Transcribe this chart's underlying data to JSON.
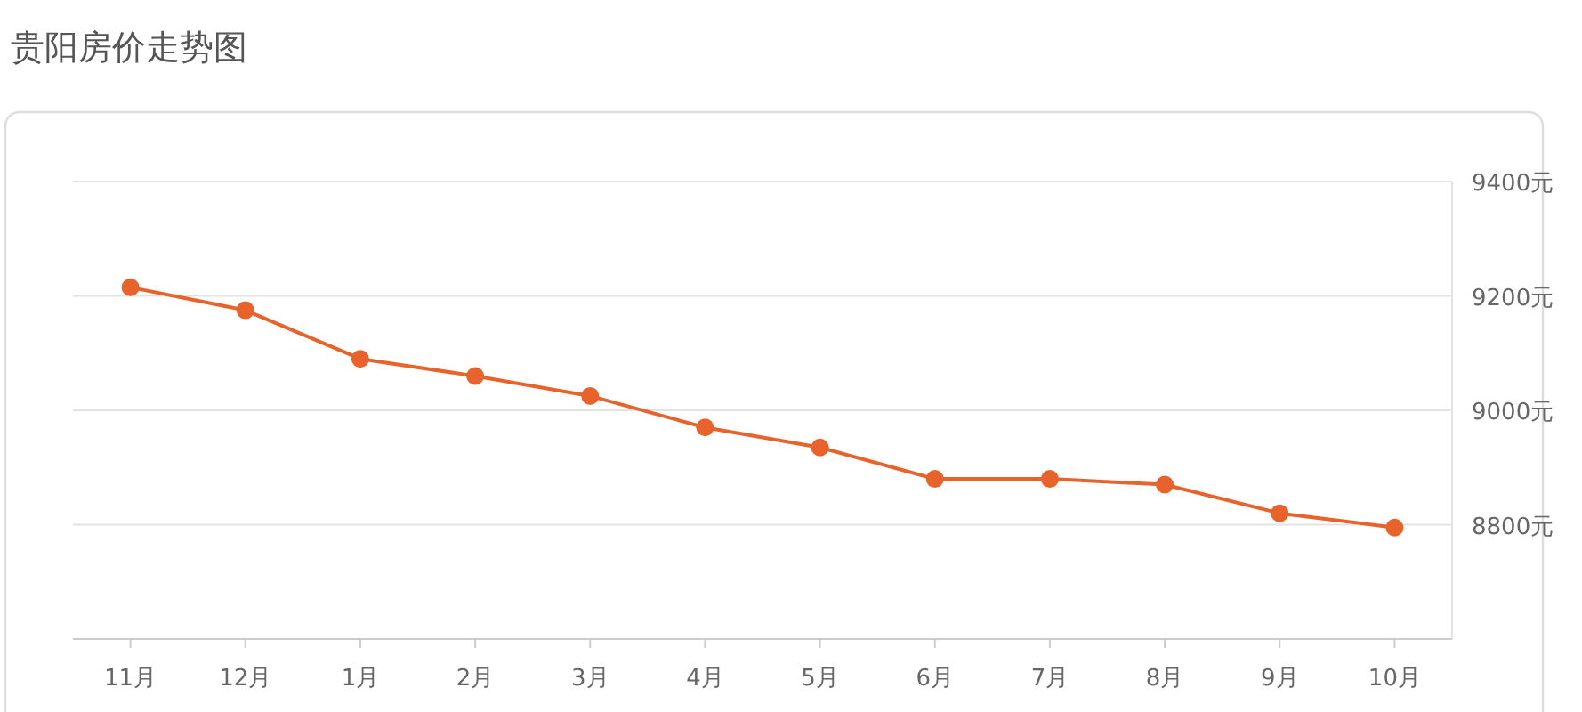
{
  "chart_data": {
    "type": "line",
    "title": "贵阳房价走势图",
    "categories": [
      "11月",
      "12月",
      "1月",
      "2月",
      "3月",
      "4月",
      "5月",
      "6月",
      "7月",
      "8月",
      "9月",
      "10月"
    ],
    "values": [
      9215,
      9175,
      9090,
      9060,
      9025,
      8970,
      8935,
      8880,
      8880,
      8870,
      8820,
      8795
    ],
    "color": "#e8632b",
    "marker": "circle",
    "grid": "y",
    "ylim": [
      8600,
      9400
    ],
    "yticks": [
      {
        "value": 8800,
        "label": "8800元"
      },
      {
        "value": 9000,
        "label": "9000元"
      },
      {
        "value": 9200,
        "label": "9200元"
      },
      {
        "value": 9400,
        "label": "9400元"
      }
    ]
  }
}
